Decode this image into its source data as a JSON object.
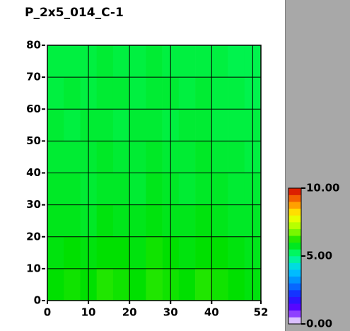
{
  "chart_data": {
    "type": "heatmap",
    "title": "P_2x5_014_C-1",
    "x_bins": [
      0,
      4,
      8,
      12,
      16,
      20,
      24,
      28,
      32,
      36,
      40,
      44,
      48,
      52
    ],
    "y_bins": [
      0,
      10,
      20,
      30,
      40,
      50,
      60,
      70,
      80
    ],
    "z": [
      [
        6.0,
        6.1,
        6.0,
        6.2,
        6.1,
        6.0,
        6.2,
        6.1,
        6.0,
        6.2,
        6.1,
        6.0,
        5.9
      ],
      [
        5.9,
        6.0,
        5.9,
        6.0,
        6.0,
        5.9,
        6.1,
        6.0,
        5.9,
        6.0,
        6.0,
        5.9,
        5.8
      ],
      [
        5.8,
        5.8,
        5.7,
        5.9,
        5.8,
        5.8,
        5.9,
        5.8,
        5.8,
        5.9,
        5.8,
        5.7,
        5.7
      ],
      [
        5.7,
        5.7,
        5.6,
        5.7,
        5.7,
        5.6,
        5.8,
        5.7,
        5.6,
        5.7,
        5.7,
        5.6,
        5.6
      ],
      [
        5.6,
        5.6,
        5.6,
        5.7,
        5.6,
        5.6,
        5.7,
        5.6,
        5.6,
        5.7,
        5.6,
        5.6,
        5.5
      ],
      [
        5.6,
        5.5,
        5.6,
        5.6,
        5.5,
        5.6,
        5.6,
        5.5,
        5.6,
        5.6,
        5.5,
        5.5,
        5.5
      ],
      [
        5.5,
        5.6,
        5.5,
        5.6,
        5.6,
        5.5,
        5.6,
        5.6,
        5.5,
        5.6,
        5.5,
        5.5,
        5.4
      ],
      [
        5.5,
        5.5,
        5.5,
        5.6,
        5.5,
        5.5,
        5.6,
        5.5,
        5.5,
        5.5,
        5.5,
        5.4,
        5.4
      ]
    ],
    "xlim": [
      0,
      52
    ],
    "xticks": [
      0,
      10,
      20,
      30,
      40,
      52
    ],
    "xgrid": [
      10,
      20,
      30,
      40,
      50
    ],
    "ylim": [
      0,
      80
    ],
    "yticks": [
      0,
      10,
      20,
      30,
      40,
      50,
      60,
      70,
      80
    ],
    "ygrid": [
      10,
      20,
      30,
      40,
      50,
      60,
      70
    ],
    "zlim": [
      0,
      10
    ],
    "colormap": [
      "#ffffff",
      "#6a00ff",
      "#1a1aff",
      "#0080ff",
      "#00d0ff",
      "#00ff80",
      "#00e000",
      "#a0ff00",
      "#ffff00",
      "#ff8000",
      "#d00000"
    ],
    "colorbar_ticks": [
      {
        "value": 10,
        "label": "10.00"
      },
      {
        "value": 5,
        "label": "5.00"
      },
      {
        "value": 0,
        "label": "0.00"
      }
    ]
  }
}
